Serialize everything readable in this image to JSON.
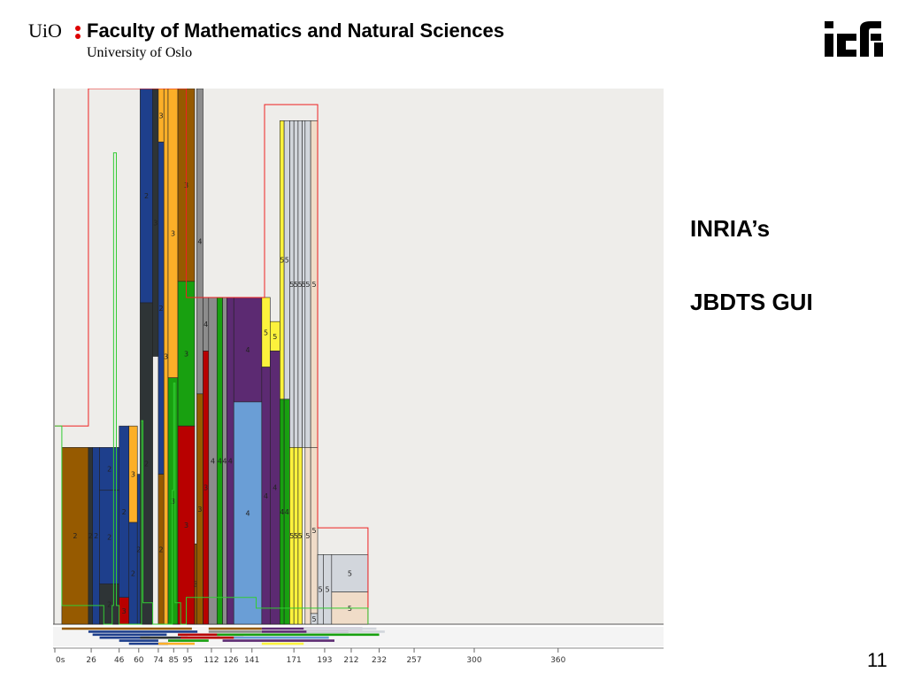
{
  "header": {
    "uio_logo": "UiO",
    "faculty": "Faculty of Mathematics and Natural Sciences",
    "university": "University of Oslo",
    "ifi_logo_icon": "ifi-logo-icon"
  },
  "sidebar": {
    "line1": "INRIA’s",
    "line2": "JBDTS GUI"
  },
  "slide": {
    "page_number": "11"
  },
  "colors": {
    "background": "#eeedea",
    "brown": "#965a00",
    "blue": "#1e3f8c",
    "dark": "#2e3436",
    "orange": "#fcaf28",
    "red": "#b80000",
    "green": "#18a010",
    "gray": "#8c8c8c",
    "purple": "#5c2a72",
    "lightblue": "#6a9ed6",
    "yellow": "#fcf23c",
    "palegray": "#d2d6dc",
    "peach": "#f0dcc8"
  },
  "gui": {
    "axis_labels": [
      "0s",
      "26",
      "46",
      "60",
      "74",
      "85",
      "95",
      "112",
      "126",
      "141",
      "171",
      "193",
      "212",
      "232",
      "257",
      "300",
      "360"
    ],
    "bars": [
      {
        "l": "2",
        "c": "brown",
        "x0": 5,
        "x1": 24,
        "y0": 0,
        "y1": 0.33
      },
      {
        "l": "2",
        "c": "dark",
        "x0": 24,
        "x1": 27,
        "y0": 0,
        "y1": 0.33
      },
      {
        "l": "2",
        "c": "blue",
        "x0": 27,
        "x1": 32,
        "y0": 0,
        "y1": 0.33
      },
      {
        "l": "2",
        "c": "blue",
        "x0": 32,
        "x1": 46,
        "y0": 0.25,
        "y1": 0.33
      },
      {
        "l": "2",
        "c": "blue",
        "x0": 32,
        "x1": 46,
        "y0": 0.075,
        "y1": 0.25
      },
      {
        "l": "2",
        "c": "dark",
        "x0": 32,
        "x1": 46,
        "y0": 0,
        "y1": 0.075
      },
      {
        "l": "2",
        "c": "blue",
        "x0": 46,
        "x1": 53,
        "y0": 0.05,
        "y1": 0.37
      },
      {
        "l": "3",
        "c": "red",
        "x0": 46,
        "x1": 53,
        "y0": 0,
        "y1": 0.05
      },
      {
        "l": "3",
        "c": "orange",
        "x0": 53,
        "x1": 59,
        "y0": 0.19,
        "y1": 0.37
      },
      {
        "l": "2",
        "c": "blue",
        "x0": 53,
        "x1": 59,
        "y0": 0,
        "y1": 0.19
      },
      {
        "l": "2",
        "c": "blue",
        "x0": 59,
        "x1": 61,
        "y0": 0,
        "y1": 0.28
      },
      {
        "l": "2",
        "c": "blue",
        "x0": 61,
        "x1": 70,
        "y0": 0.6,
        "y1": 1
      },
      {
        "l": "2",
        "c": "dark",
        "x0": 61,
        "x1": 70,
        "y0": 0,
        "y1": 0.6
      },
      {
        "l": "3",
        "c": "dark",
        "x0": 70,
        "x1": 74,
        "y0": 0.5,
        "y1": 1
      },
      {
        "l": "3",
        "c": "orange",
        "x0": 74,
        "x1": 78,
        "y0": 0.9,
        "y1": 1
      },
      {
        "l": "2",
        "c": "blue",
        "x0": 74,
        "x1": 78,
        "y0": 0.28,
        "y1": 0.9
      },
      {
        "l": "2",
        "c": "brown",
        "x0": 74,
        "x1": 78,
        "y0": 0,
        "y1": 0.28
      },
      {
        "l": "3",
        "c": "orange",
        "x0": 78,
        "x1": 81,
        "y0": 0,
        "y1": 1
      },
      {
        "l": "3",
        "c": "orange",
        "x0": 81,
        "x1": 88,
        "y0": 0.46,
        "y1": 1
      },
      {
        "l": "3",
        "c": "green",
        "x0": 81,
        "x1": 88,
        "y0": 0,
        "y1": 0.46
      },
      {
        "l": "3",
        "c": "brown",
        "x0": 88,
        "x1": 100,
        "y0": 0.64,
        "y1": 1
      },
      {
        "l": "3",
        "c": "green",
        "x0": 88,
        "x1": 100,
        "y0": 0.37,
        "y1": 0.64
      },
      {
        "l": "3",
        "c": "red",
        "x0": 88,
        "x1": 100,
        "y0": 0,
        "y1": 0.37
      },
      {
        "l": "3",
        "c": "brown",
        "x0": 100,
        "x1": 101.5,
        "y0": 0,
        "y1": 0.15
      },
      {
        "l": "4",
        "c": "gray",
        "x0": 101.5,
        "x1": 106,
        "y0": 0.43,
        "y1": 1
      },
      {
        "l": "3",
        "c": "brown",
        "x0": 101.5,
        "x1": 106,
        "y0": 0,
        "y1": 0.43
      },
      {
        "l": "4",
        "c": "gray",
        "x0": 106,
        "x1": 110,
        "y0": 0.51,
        "y1": 0.61
      },
      {
        "l": "3",
        "c": "red",
        "x0": 106,
        "x1": 110,
        "y0": 0,
        "y1": 0.51
      },
      {
        "l": "4",
        "c": "gray",
        "x0": 110,
        "x1": 116,
        "y0": 0,
        "y1": 0.61
      },
      {
        "l": "4",
        "c": "green",
        "x0": 116,
        "x1": 120,
        "y0": 0,
        "y1": 0.61
      },
      {
        "l": "4",
        "c": "gray",
        "x0": 120,
        "x1": 123,
        "y0": 0,
        "y1": 0.61
      },
      {
        "l": "4",
        "c": "purple",
        "x0": 123,
        "x1": 128,
        "y0": 0,
        "y1": 0.61
      },
      {
        "l": "4",
        "c": "purple",
        "x0": 128,
        "x1": 148,
        "y0": 0.415,
        "y1": 0.61
      },
      {
        "l": "4",
        "c": "lightblue",
        "x0": 128,
        "x1": 148,
        "y0": 0,
        "y1": 0.415
      },
      {
        "l": "5",
        "c": "yellow",
        "x0": 148,
        "x1": 154,
        "y0": 0.48,
        "y1": 0.61
      },
      {
        "l": "4",
        "c": "purple",
        "x0": 148,
        "x1": 154,
        "y0": 0,
        "y1": 0.48
      },
      {
        "l": "5",
        "c": "yellow",
        "x0": 154,
        "x1": 161,
        "y0": 0.51,
        "y1": 0.565
      },
      {
        "l": "4",
        "c": "purple",
        "x0": 154,
        "x1": 161,
        "y0": 0,
        "y1": 0.51
      },
      {
        "l": "5",
        "c": "yellow",
        "x0": 161,
        "x1": 164,
        "y0": 0.42,
        "y1": 0.94
      },
      {
        "l": "4",
        "c": "green",
        "x0": 161,
        "x1": 164,
        "y0": 0,
        "y1": 0.42
      },
      {
        "l": "5",
        "c": "palegray",
        "x0": 164,
        "x1": 168,
        "y0": 0.42,
        "y1": 0.94
      },
      {
        "l": "4",
        "c": "green",
        "x0": 164,
        "x1": 168,
        "y0": 0,
        "y1": 0.42
      },
      {
        "l": "5",
        "c": "palegray",
        "x0": 168,
        "x1": 171,
        "y0": 0.33,
        "y1": 0.94
      },
      {
        "l": "5",
        "c": "yellow",
        "x0": 168,
        "x1": 171,
        "y0": 0,
        "y1": 0.33
      },
      {
        "l": "5",
        "c": "palegray",
        "x0": 171,
        "x1": 174,
        "y0": 0.33,
        "y1": 0.94
      },
      {
        "l": "5",
        "c": "yellow",
        "x0": 171,
        "x1": 174,
        "y0": 0,
        "y1": 0.33
      },
      {
        "l": "5",
        "c": "palegray",
        "x0": 174,
        "x1": 177,
        "y0": 0.33,
        "y1": 0.94
      },
      {
        "l": "5",
        "c": "yellow",
        "x0": 174,
        "x1": 177,
        "y0": 0,
        "y1": 0.33
      },
      {
        "l": "5",
        "c": "palegray",
        "x0": 177,
        "x1": 179,
        "y0": 0.33,
        "y1": 0.94
      },
      {
        "l": "5",
        "c": "palegray",
        "x0": 179,
        "x1": 183,
        "y0": 0.33,
        "y1": 0.94
      },
      {
        "l": "5",
        "c": "peach",
        "x0": 179,
        "x1": 183,
        "y0": 0,
        "y1": 0.33
      },
      {
        "l": "5",
        "c": "peach",
        "x0": 183,
        "x1": 188,
        "y0": 0.33,
        "y1": 0.94
      },
      {
        "l": "5",
        "c": "peach",
        "x0": 183,
        "x1": 188,
        "y0": 0.02,
        "y1": 0.33
      },
      {
        "l": "5",
        "c": "palegray",
        "x0": 183,
        "x1": 188,
        "y0": 0,
        "y1": 0.02
      },
      {
        "l": "5",
        "c": "palegray",
        "x0": 188,
        "x1": 192,
        "y0": 0,
        "y1": 0.13
      },
      {
        "l": "5",
        "c": "palegray",
        "x0": 192,
        "x1": 198,
        "y0": 0,
        "y1": 0.13
      },
      {
        "l": "5",
        "c": "palegray",
        "x0": 198,
        "x1": 224,
        "y0": 0.06,
        "y1": 0.13
      },
      {
        "l": "5",
        "c": "peach",
        "x0": 198,
        "x1": 224,
        "y0": 0,
        "y1": 0.06
      }
    ],
    "red_outline": [
      [
        0,
        0.37
      ],
      [
        24,
        0.37
      ],
      [
        24,
        1
      ],
      [
        94,
        1
      ],
      [
        94,
        0.61
      ],
      [
        150,
        0.61
      ],
      [
        150,
        0.97
      ],
      [
        188,
        0.97
      ],
      [
        188,
        0.18
      ],
      [
        224,
        0.18
      ],
      [
        224,
        0
      ]
    ],
    "green_outline": [
      [
        0,
        0.37
      ],
      [
        5,
        0.37
      ],
      [
        5,
        0.035
      ],
      [
        35,
        0.035
      ],
      [
        35,
        0
      ],
      [
        41,
        0
      ],
      [
        41,
        0.035
      ],
      [
        42,
        0.035
      ],
      [
        42,
        0.88
      ],
      [
        44,
        0.88
      ],
      [
        44,
        0.035
      ],
      [
        46,
        0.035
      ],
      [
        46,
        0
      ],
      [
        62,
        0
      ],
      [
        62,
        0.38
      ],
      [
        63,
        0.38
      ],
      [
        63,
        0.04
      ],
      [
        70,
        0.04
      ],
      [
        70,
        0
      ],
      [
        84,
        0
      ],
      [
        84,
        0.25
      ],
      [
        85,
        0.25
      ],
      [
        85,
        0.45
      ],
      [
        86,
        0.45
      ],
      [
        86,
        0.04
      ],
      [
        90,
        0.04
      ],
      [
        90,
        0
      ],
      [
        94,
        0
      ],
      [
        94,
        0.05
      ],
      [
        144,
        0.05
      ],
      [
        144,
        0.03
      ],
      [
        224,
        0.03
      ],
      [
        224,
        0
      ]
    ],
    "timeline_lines": [
      {
        "c": "brown",
        "x0": 5,
        "x1": 98,
        "row": 0
      },
      {
        "c": "brown",
        "x0": 110,
        "x1": 148,
        "row": 0
      },
      {
        "c": "purple",
        "x0": 148,
        "x1": 220,
        "row": 0
      },
      {
        "c": "palegray",
        "x0": 178,
        "x1": 230,
        "row": 0
      },
      {
        "c": "blue",
        "x0": 24,
        "x1": 102,
        "row": 1
      },
      {
        "c": "gray",
        "x0": 110,
        "x1": 148,
        "row": 1
      },
      {
        "c": "purple",
        "x0": 148,
        "x1": 210,
        "row": 1
      },
      {
        "c": "palegray",
        "x0": 180,
        "x1": 236,
        "row": 1
      },
      {
        "c": "blue",
        "x0": 27,
        "x1": 80,
        "row": 2
      },
      {
        "c": "red",
        "x0": 88,
        "x1": 118,
        "row": 2
      },
      {
        "c": "green",
        "x0": 116,
        "x1": 232,
        "row": 2
      },
      {
        "c": "blue",
        "x0": 32,
        "x1": 68,
        "row": 3
      },
      {
        "c": "dark",
        "x0": 61,
        "x1": 95,
        "row": 3
      },
      {
        "c": "red",
        "x0": 90,
        "x1": 135,
        "row": 3
      },
      {
        "c": "lightblue",
        "x0": 128,
        "x1": 196,
        "row": 3
      },
      {
        "c": "blue",
        "x0": 46,
        "x1": 74,
        "row": 4
      },
      {
        "c": "green",
        "x0": 81,
        "x1": 110,
        "row": 4
      },
      {
        "c": "purple",
        "x0": 120,
        "x1": 200,
        "row": 4
      },
      {
        "c": "blue",
        "x0": 53,
        "x1": 81,
        "row": 5
      },
      {
        "c": "orange",
        "x0": 74,
        "x1": 100,
        "row": 5
      },
      {
        "c": "yellow",
        "x0": 148,
        "x1": 178,
        "row": 5
      }
    ]
  }
}
